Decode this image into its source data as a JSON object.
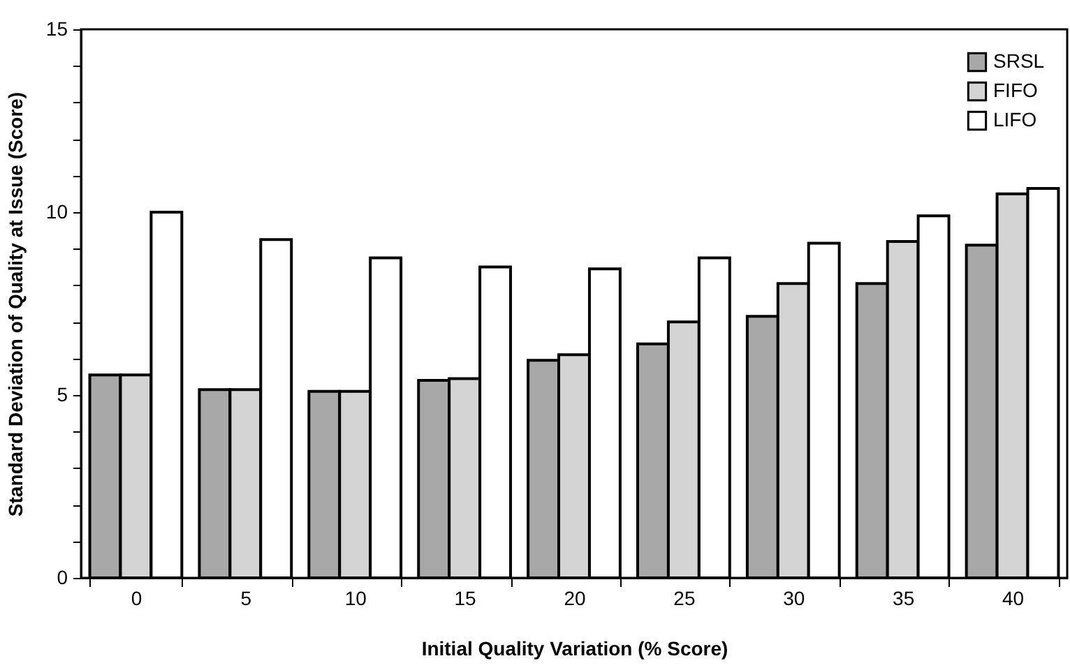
{
  "chart_data": {
    "type": "bar",
    "xlabel": "Initial Quality Variation (% Score)",
    "ylabel": "Standard Deviation of Quality at Issue (Score)",
    "categories": [
      "0",
      "5",
      "10",
      "15",
      "20",
      "25",
      "30",
      "35",
      "40"
    ],
    "series": [
      {
        "name": "SRSL",
        "color": "#a8a8a8",
        "values": [
          5.55,
          5.15,
          5.1,
          5.4,
          5.95,
          6.4,
          7.15,
          8.05,
          9.1
        ]
      },
      {
        "name": "FIFO",
        "color": "#d4d4d4",
        "values": [
          5.55,
          5.15,
          5.1,
          5.45,
          6.1,
          7.0,
          8.05,
          9.2,
          10.5
        ]
      },
      {
        "name": "LIFO",
        "color": "#ffffff",
        "values": [
          10.0,
          9.25,
          8.75,
          8.5,
          8.45,
          8.75,
          9.15,
          9.9,
          10.65
        ]
      }
    ],
    "ylim": [
      0,
      15
    ],
    "yticks": [
      0,
      {
        "value": 1,
        "label": null
      },
      {
        "value": 2,
        "label": null
      },
      {
        "value": 3,
        "label": null
      },
      {
        "value": 4,
        "label": null
      },
      5,
      {
        "value": 6,
        "label": null
      },
      {
        "value": 7,
        "label": null
      },
      {
        "value": 8,
        "label": null
      },
      {
        "value": 9,
        "label": null
      },
      10,
      {
        "value": 11,
        "label": null
      },
      {
        "value": 12,
        "label": null
      },
      {
        "value": 13,
        "label": null
      },
      {
        "value": 14,
        "label": null
      },
      15
    ],
    "legend": "top right",
    "grid": false
  }
}
